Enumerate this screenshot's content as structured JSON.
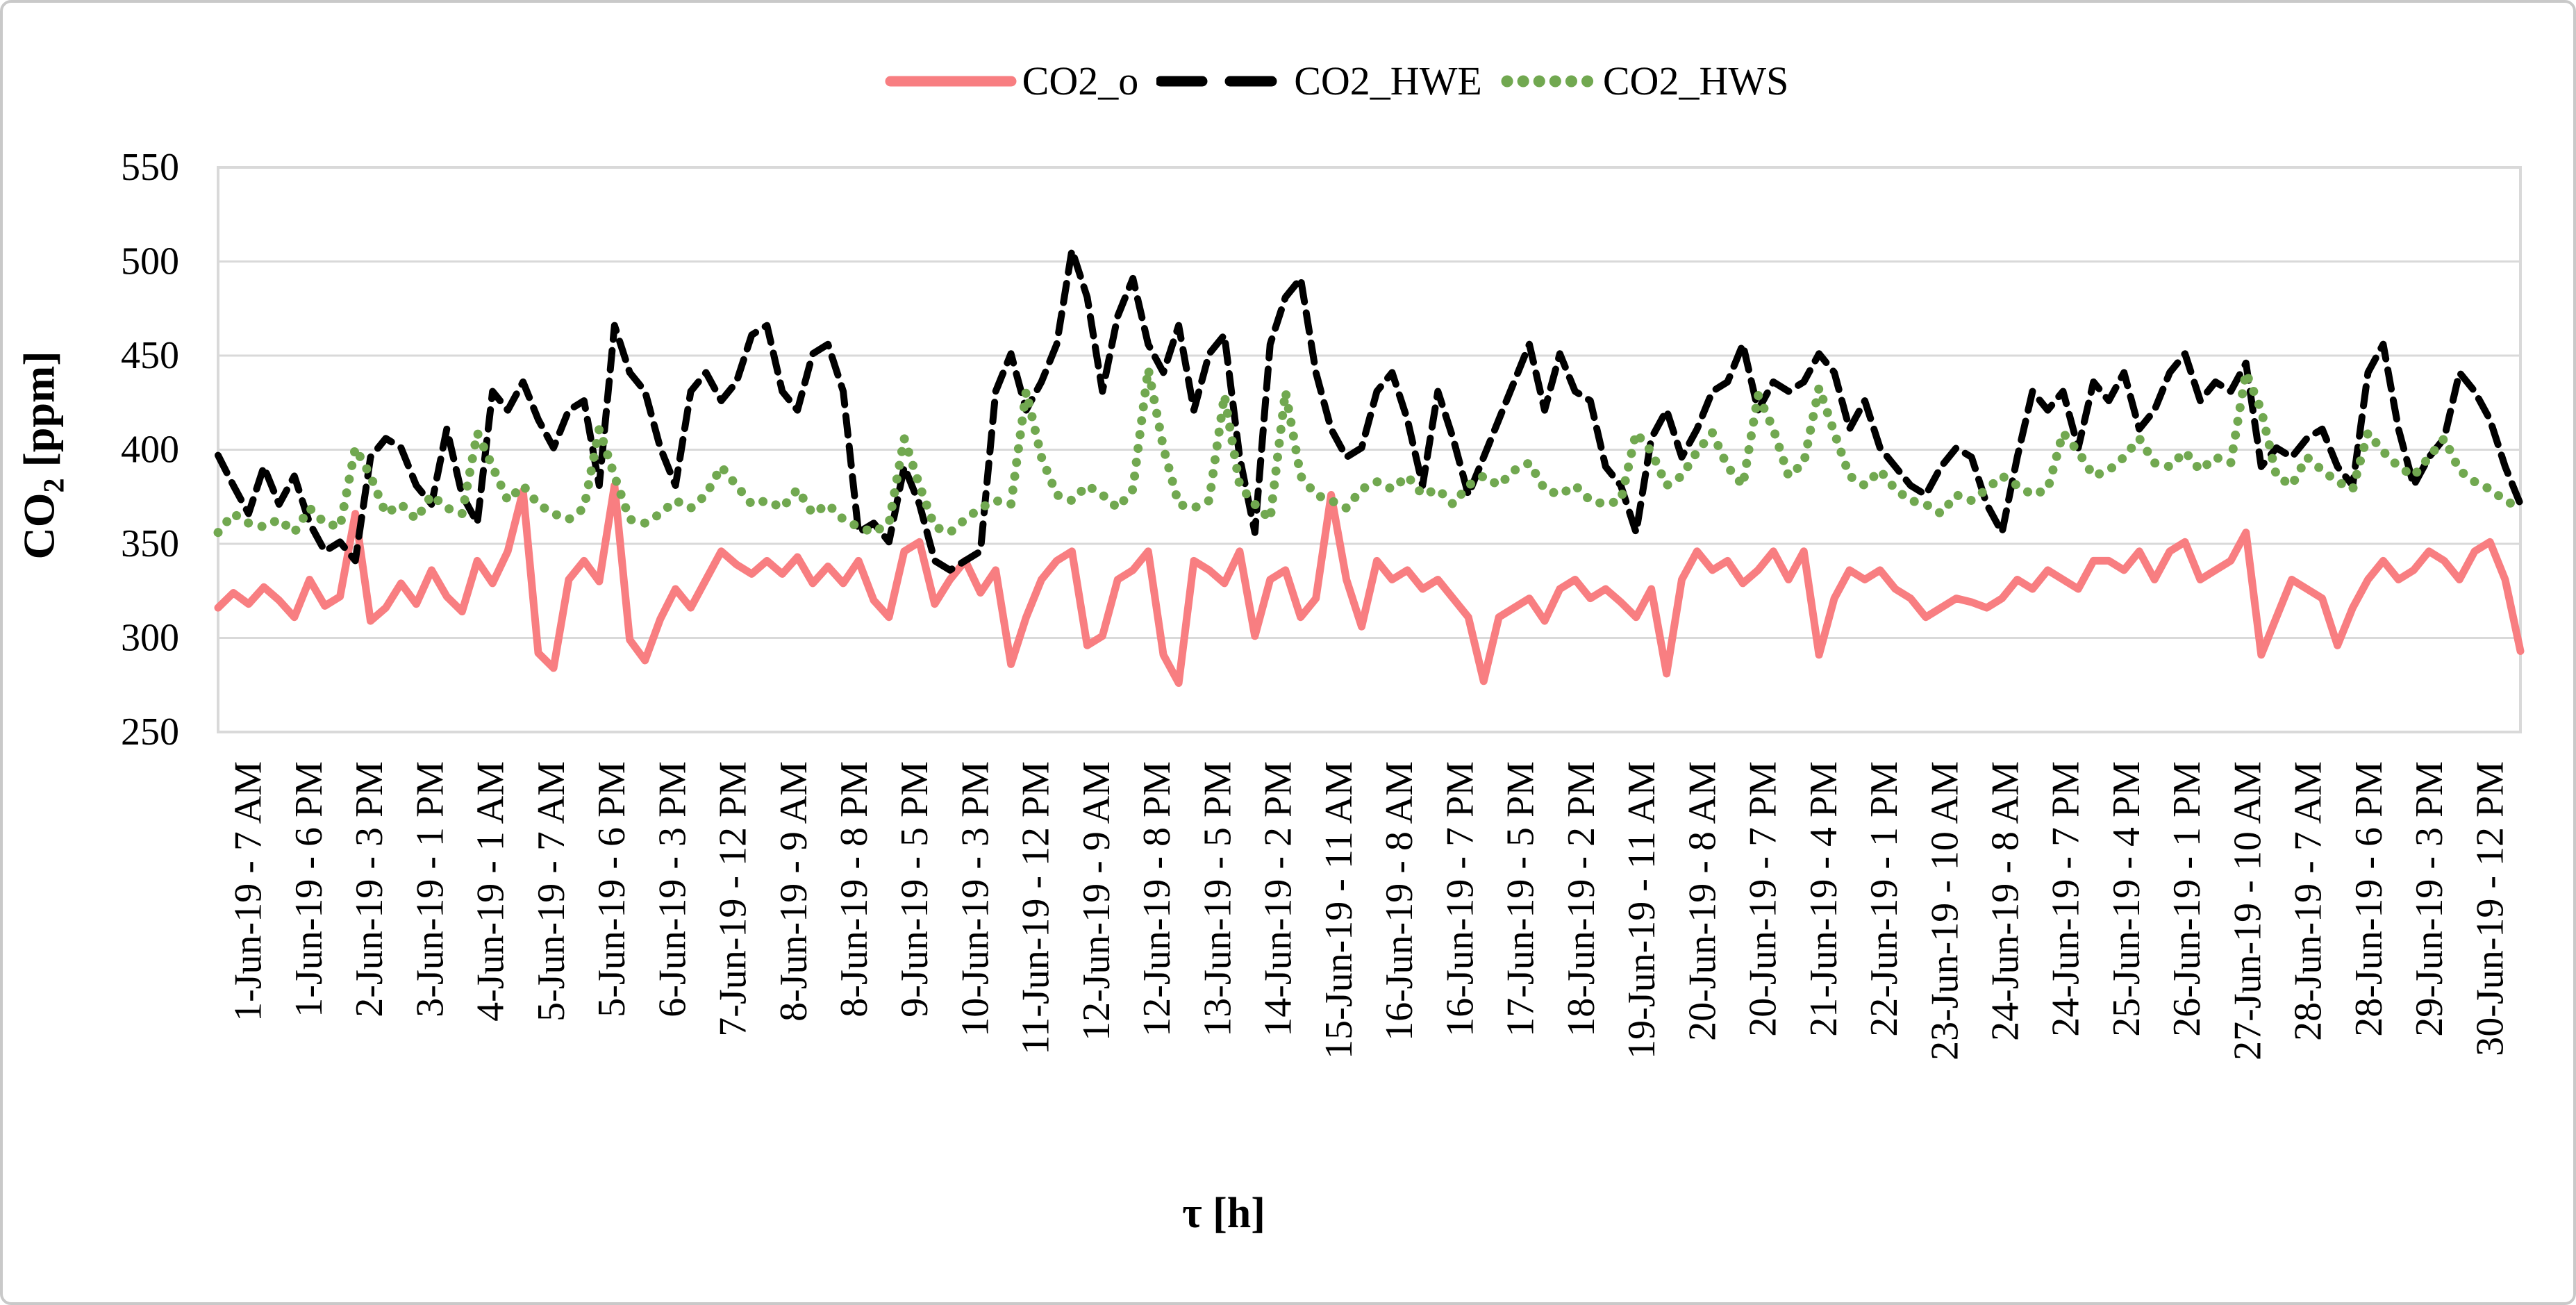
{
  "legend": {
    "items": [
      {
        "label": "CO2_o"
      },
      {
        "label": "CO2_HWE"
      },
      {
        "label": "CO2_HWS"
      }
    ]
  },
  "axis_y": {
    "title_main": "CO",
    "title_sub": "2",
    "title_unit": " [ppm]"
  },
  "axis_x": {
    "title": "τ [h]"
  },
  "colors": {
    "co2_o": "#F87E81",
    "co2_hwe": "#000000",
    "co2_hws": "#71A850",
    "gridline": "#D9D9D9",
    "plot_border": "#D9D9D9"
  },
  "chart_data": {
    "type": "line",
    "title": "",
    "xlabel": "τ [h]",
    "ylabel": "CO2 [ppm]",
    "ylim": [
      250,
      550
    ],
    "y_ticks": [
      250,
      300,
      350,
      400,
      450,
      500,
      550
    ],
    "grid": true,
    "legend_position": "top",
    "x_tick_labels": [
      "1-Jun-19 - 7 AM",
      "1-Jun-19 - 6 PM",
      "2-Jun-19 - 3 PM",
      "3-Jun-19 - 1 PM",
      "4-Jun-19 - 1 AM",
      "5-Jun-19 - 7 AM",
      "5-Jun-19 - 6 PM",
      "6-Jun-19 - 3 PM",
      "7-Jun-19 - 12 PM",
      "8-Jun-19 - 9 AM",
      "8-Jun-19 - 8 PM",
      "9-Jun-19 - 5 PM",
      "10-Jun-19 - 3 PM",
      "11-Jun-19 - 12 PM",
      "12-Jun-19 - 9 AM",
      "12-Jun-19 - 8 PM",
      "13-Jun-19 - 5 PM",
      "14-Jun-19 - 2 PM",
      "15-Jun-19 - 11 AM",
      "16-Jun-19 - 8 AM",
      "16-Jun-19 - 7 PM",
      "17-Jun-19 - 5 PM",
      "18-Jun-19 - 2 PM",
      "19-Jun-19 - 11 AM",
      "20-Jun-19 - 8 AM",
      "20-Jun-19 - 7 PM",
      "21-Jun-19 - 4 PM",
      "22-Jun-19 - 1 PM",
      "23-Jun-19 - 10 AM",
      "24-Jun-19 - 8 AM",
      "24-Jun-19 - 7 PM",
      "25-Jun-19 - 4 PM",
      "26-Jun-19 - 1 PM",
      "27-Jun-19 - 10 AM",
      "28-Jun-19 - 7 AM",
      "28-Jun-19 - 6 PM",
      "29-Jun-19 - 3 PM",
      "30-Jun-19 - 12 PM"
    ],
    "series": [
      {
        "name": "CO2_o",
        "color": "#F87E81",
        "style": "solid",
        "values": [
          316,
          324,
          318,
          327,
          320,
          311,
          331,
          317,
          322,
          366,
          309,
          316,
          329,
          318,
          336,
          322,
          314,
          341,
          329,
          346,
          378,
          292,
          284,
          331,
          341,
          330,
          381,
          299,
          288,
          310,
          326,
          316,
          331,
          346,
          339,
          334,
          341,
          334,
          343,
          329,
          338,
          329,
          341,
          320,
          311,
          346,
          351,
          318,
          331,
          341,
          324,
          336,
          286,
          311,
          331,
          341,
          346,
          296,
          301,
          331,
          336,
          346,
          291,
          276,
          341,
          336,
          329,
          346,
          301,
          331,
          336,
          311,
          321,
          376,
          331,
          306,
          341,
          331,
          336,
          326,
          331,
          321,
          311,
          277,
          311,
          316,
          321,
          309,
          326,
          331,
          321,
          326,
          319,
          311,
          326,
          281,
          331,
          346,
          336,
          341,
          329,
          336,
          346,
          331,
          346,
          291,
          321,
          336,
          331,
          336,
          326,
          321,
          311,
          316,
          321,
          319,
          316,
          321,
          331,
          326,
          336,
          331,
          326,
          341,
          341,
          336,
          346,
          331,
          346,
          351,
          331,
          336,
          341,
          356,
          291,
          311,
          331,
          326,
          321,
          296,
          316,
          331,
          341,
          331,
          336,
          346,
          341,
          331,
          346,
          351,
          331,
          293
        ]
      },
      {
        "name": "CO2_HWE",
        "color": "#000000",
        "style": "dashed",
        "values": [
          397,
          381,
          366,
          391,
          371,
          386,
          361,
          346,
          351,
          341,
          396,
          406,
          401,
          381,
          371,
          411,
          376,
          361,
          431,
          421,
          436,
          416,
          401,
          421,
          426,
          381,
          466,
          441,
          431,
          401,
          381,
          431,
          441,
          426,
          436,
          461,
          466,
          431,
          421,
          451,
          456,
          431,
          356,
          361,
          351,
          391,
          371,
          341,
          336,
          341,
          346,
          431,
          451,
          421,
          436,
          456,
          506,
          481,
          431,
          471,
          491,
          456,
          441,
          466,
          421,
          451,
          461,
          396,
          356,
          456,
          481,
          491,
          441,
          411,
          396,
          401,
          431,
          441,
          416,
          381,
          431,
          406,
          376,
          396,
          416,
          436,
          456,
          421,
          451,
          431,
          426,
          391,
          381,
          356,
          406,
          421,
          396,
          411,
          431,
          436,
          456,
          421,
          436,
          431,
          436,
          451,
          441,
          411,
          426,
          401,
          391,
          381,
          376,
          391,
          401,
          396,
          371,
          356,
          396,
          431,
          421,
          431,
          401,
          436,
          426,
          441,
          411,
          421,
          441,
          451,
          426,
          436,
          431,
          446,
          391,
          401,
          396,
          406,
          411,
          391,
          381,
          441,
          456,
          411,
          381,
          396,
          406,
          441,
          431,
          416,
          391,
          371
        ]
      },
      {
        "name": "CO2_HWS",
        "color": "#71A850",
        "style": "dotted",
        "values": [
          356,
          366,
          361,
          359,
          363,
          356,
          369,
          361,
          359,
          401,
          386,
          366,
          371,
          363,
          376,
          369,
          366,
          409,
          391,
          373,
          381,
          371,
          366,
          363,
          369,
          411,
          386,
          363,
          361,
          366,
          373,
          369,
          376,
          391,
          381,
          371,
          373,
          369,
          379,
          366,
          371,
          363,
          359,
          356,
          361,
          406,
          381,
          359,
          356,
          363,
          369,
          373,
          371,
          431,
          396,
          376,
          373,
          381,
          376,
          369,
          379,
          443,
          401,
          371,
          369,
          373,
          429,
          381,
          371,
          363,
          431,
          386,
          376,
          373,
          369,
          379,
          383,
          379,
          386,
          376,
          379,
          371,
          381,
          386,
          381,
          389,
          393,
          379,
          376,
          381,
          373,
          371,
          373,
          409,
          399,
          381,
          386,
          399,
          409,
          391,
          381,
          429,
          411,
          386,
          393,
          433,
          409,
          386,
          381,
          389,
          379,
          373,
          371,
          366,
          376,
          373,
          379,
          386,
          381,
          376,
          379,
          409,
          399,
          386,
          389,
          396,
          406,
          393,
          391,
          399,
          389,
          396,
          393,
          441,
          421,
          386,
          381,
          396,
          389,
          383,
          379,
          409,
          399,
          391,
          386,
          396,
          406,
          389,
          383,
          379,
          373,
          369
        ]
      }
    ]
  }
}
